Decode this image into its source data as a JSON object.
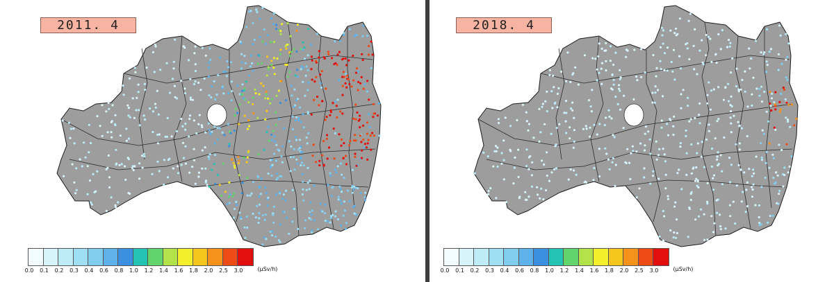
{
  "panels": [
    {
      "id": "left",
      "year_label": "2011. 4"
    },
    {
      "id": "right",
      "year_label": "2018. 4"
    }
  ],
  "legend": {
    "ticks": [
      "0.0",
      "0.1",
      "0.2",
      "0.3",
      "0.4",
      "0.6",
      "0.8",
      "1.0",
      "1.2",
      "1.4",
      "1.6",
      "1.8",
      "2.0",
      "2.5",
      "3.0"
    ],
    "unit": "(μSv/h)",
    "colors": [
      "#f2fbfd",
      "#d8f3fa",
      "#bdebf6",
      "#9fdff3",
      "#80cdef",
      "#5fb1e9",
      "#3d8fe0",
      "#25c3b4",
      "#63d36b",
      "#b2e34a",
      "#f3ef2b",
      "#f6c61f",
      "#f5921b",
      "#ee4a16",
      "#e20f0f"
    ]
  }
}
